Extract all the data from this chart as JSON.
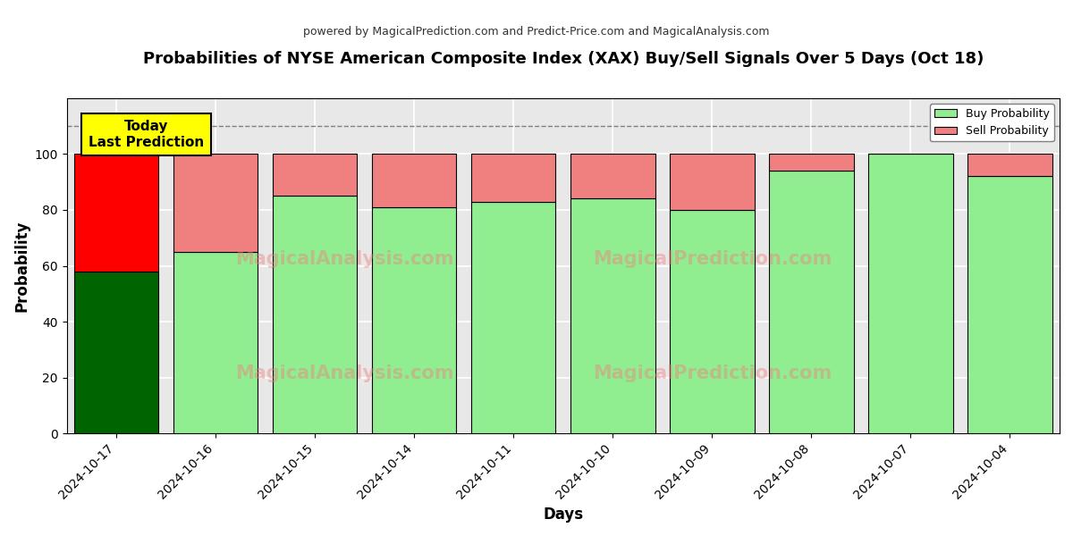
{
  "title": "Probabilities of NYSE American Composite Index (XAX) Buy/Sell Signals Over 5 Days (Oct 18)",
  "subtitle": "powered by MagicalPrediction.com and Predict-Price.com and MagicalAnalysis.com",
  "xlabel": "Days",
  "ylabel": "Probability",
  "categories": [
    "2024-10-17",
    "2024-10-16",
    "2024-10-15",
    "2024-10-14",
    "2024-10-11",
    "2024-10-10",
    "2024-10-09",
    "2024-10-08",
    "2024-10-07",
    "2024-10-04"
  ],
  "buy_values": [
    58,
    65,
    85,
    81,
    83,
    84,
    80,
    94,
    100,
    92
  ],
  "sell_values": [
    42,
    35,
    15,
    19,
    17,
    16,
    20,
    6,
    0,
    8
  ],
  "today_buy_color": "#006400",
  "today_sell_color": "#FF0000",
  "buy_color": "#90EE90",
  "sell_color": "#F08080",
  "today_label": "Today\nLast Prediction",
  "legend_buy": "Buy Probability",
  "legend_sell": "Sell Probability",
  "ylim": [
    0,
    120
  ],
  "dashed_line_y": 110,
  "watermark1": "MagicalAnalysis.com",
  "watermark2": "MagicalPrediction.com",
  "facecolor": "#e8e8e8",
  "bar_edgecolor": "#000000",
  "bar_width": 0.85,
  "title_fontsize": 13,
  "subtitle_fontsize": 9
}
